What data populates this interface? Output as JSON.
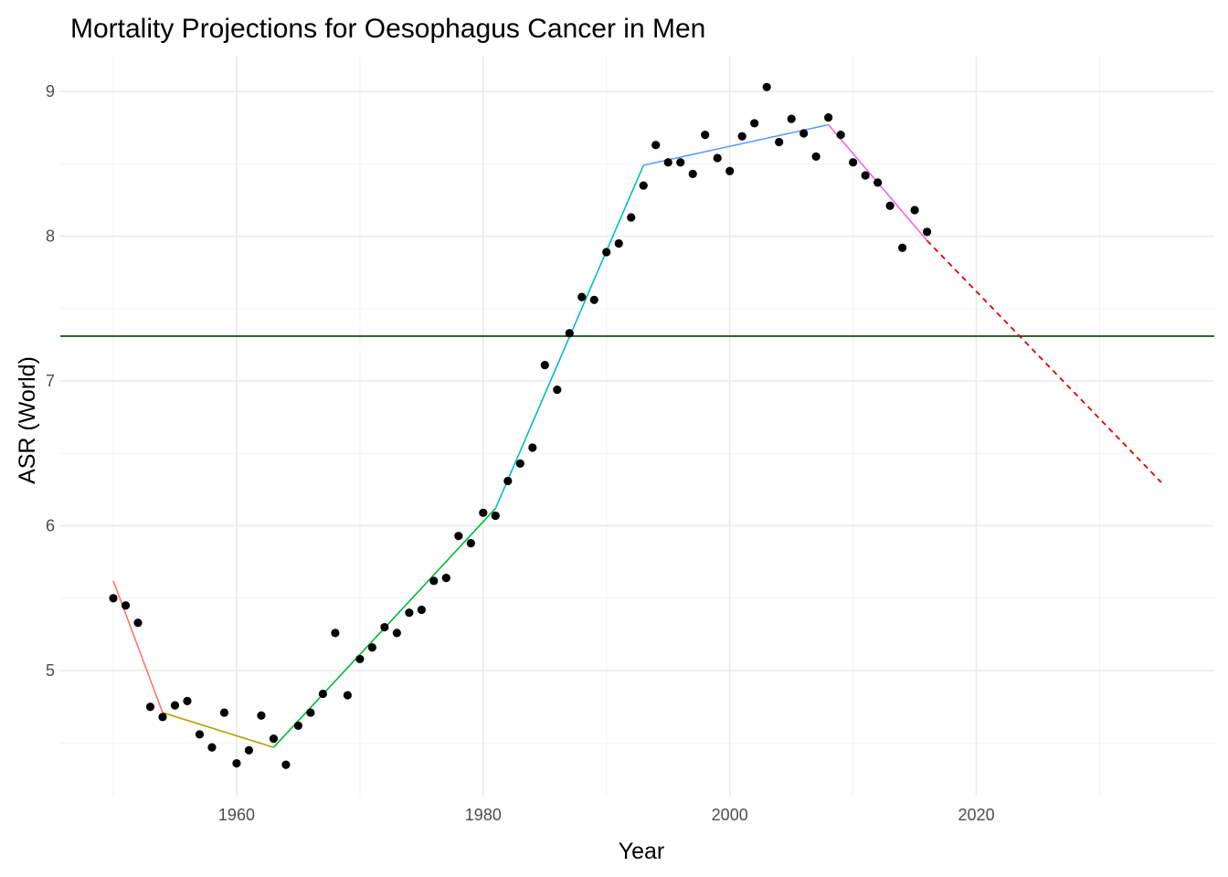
{
  "chart_data": {
    "type": "scatter",
    "title": "Mortality Projections for Oesophagus Cancer in Men",
    "xlabel": "Year",
    "ylabel": "ASR (World)",
    "xlim": [
      1945.7,
      2039.3
    ],
    "ylim": [
      4.13,
      9.24
    ],
    "x_ticks": [
      1960,
      1980,
      2000,
      2020
    ],
    "x_tick_labels": [
      "1960",
      "1980",
      "2000",
      "2020"
    ],
    "y_ticks": [
      5,
      6,
      7,
      8,
      9
    ],
    "y_tick_labels": [
      "5",
      "6",
      "7",
      "8",
      "9"
    ],
    "grid": true,
    "legend": "none",
    "observed": {
      "x": [
        1950,
        1951,
        1952,
        1953,
        1954,
        1955,
        1956,
        1957,
        1958,
        1959,
        1960,
        1961,
        1962,
        1963,
        1964,
        1965,
        1966,
        1967,
        1968,
        1969,
        1970,
        1971,
        1972,
        1973,
        1974,
        1975,
        1976,
        1977,
        1978,
        1979,
        1980,
        1981,
        1982,
        1983,
        1984,
        1985,
        1986,
        1987,
        1988,
        1989,
        1990,
        1991,
        1992,
        1993,
        1994,
        1995,
        1996,
        1997,
        1998,
        1999,
        2000,
        2001,
        2002,
        2003,
        2004,
        2005,
        2006,
        2007,
        2008,
        2009,
        2010,
        2011,
        2012,
        2013,
        2014,
        2015,
        2016
      ],
      "y": [
        5.5,
        5.45,
        5.33,
        4.75,
        4.68,
        4.76,
        4.79,
        4.56,
        4.47,
        4.71,
        4.36,
        4.45,
        4.69,
        4.53,
        4.35,
        4.62,
        4.71,
        4.84,
        5.26,
        4.83,
        5.08,
        5.16,
        5.3,
        5.26,
        5.4,
        5.42,
        5.62,
        5.64,
        5.93,
        5.88,
        6.09,
        6.07,
        6.31,
        6.43,
        6.54,
        7.11,
        6.94,
        7.33,
        7.58,
        7.56,
        7.89,
        7.95,
        8.13,
        8.35,
        8.63,
        8.51,
        8.51,
        8.43,
        8.7,
        8.54,
        8.45,
        8.69,
        8.78,
        9.03,
        8.65,
        8.81,
        8.71,
        8.55,
        8.82,
        8.7,
        8.51,
        8.42,
        8.37,
        8.21,
        7.92,
        8.18,
        8.03
      ]
    },
    "segments": [
      {
        "color": "#F8766D",
        "x": [
          1950,
          1954
        ],
        "y": [
          5.62,
          4.71
        ]
      },
      {
        "color": "#B79F00",
        "x": [
          1954,
          1963
        ],
        "y": [
          4.71,
          4.47
        ]
      },
      {
        "color": "#00BA38",
        "x": [
          1963,
          1981
        ],
        "y": [
          4.47,
          6.12
        ]
      },
      {
        "color": "#00BFC4",
        "x": [
          1981,
          1993
        ],
        "y": [
          6.12,
          8.49
        ]
      },
      {
        "color": "#619CFF",
        "x": [
          1993,
          2008
        ],
        "y": [
          8.49,
          8.77
        ]
      },
      {
        "color": "#F564E3",
        "x": [
          2008,
          2016
        ],
        "y": [
          8.77,
          7.97
        ]
      }
    ],
    "projection": {
      "color": "#E00000",
      "dash": "dashed",
      "x": [
        2016,
        2035
      ],
      "y": [
        7.97,
        6.3
      ]
    },
    "hline": {
      "color": "#1a5c1a",
      "y": 7.31
    }
  }
}
